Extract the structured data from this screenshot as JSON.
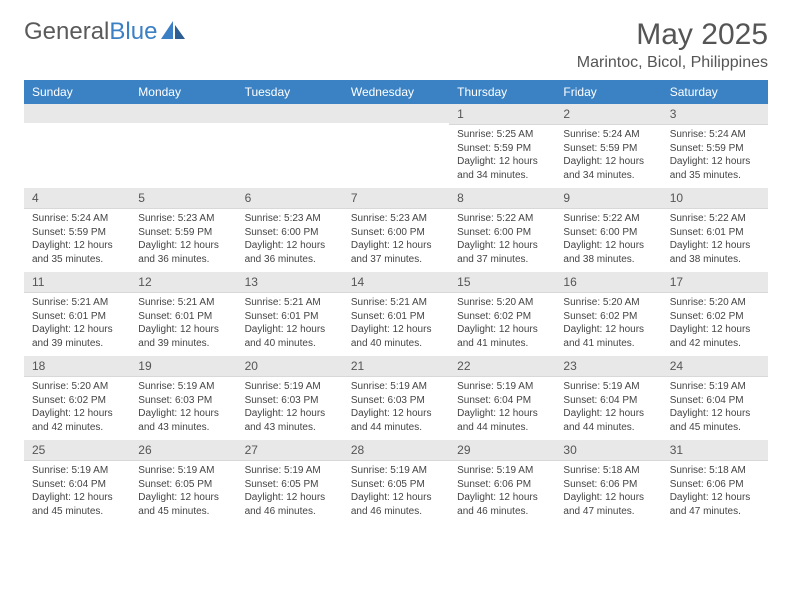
{
  "logo": {
    "text_gray": "General",
    "text_blue": "Blue"
  },
  "title": "May 2025",
  "location": "Marintoc, Bicol, Philippines",
  "day_names": [
    "Sunday",
    "Monday",
    "Tuesday",
    "Wednesday",
    "Thursday",
    "Friday",
    "Saturday"
  ],
  "colors": {
    "header_bg": "#3b82c4",
    "header_text": "#ffffff",
    "date_bg": "#e8e8e8",
    "text": "#444444",
    "logo_gray": "#5a5a5a",
    "logo_blue": "#3b7fc4"
  },
  "weeks": [
    [
      null,
      null,
      null,
      null,
      {
        "d": "1",
        "sr": "5:25 AM",
        "ss": "5:59 PM",
        "dl": "12 hours and 34 minutes."
      },
      {
        "d": "2",
        "sr": "5:24 AM",
        "ss": "5:59 PM",
        "dl": "12 hours and 34 minutes."
      },
      {
        "d": "3",
        "sr": "5:24 AM",
        "ss": "5:59 PM",
        "dl": "12 hours and 35 minutes."
      }
    ],
    [
      {
        "d": "4",
        "sr": "5:24 AM",
        "ss": "5:59 PM",
        "dl": "12 hours and 35 minutes."
      },
      {
        "d": "5",
        "sr": "5:23 AM",
        "ss": "5:59 PM",
        "dl": "12 hours and 36 minutes."
      },
      {
        "d": "6",
        "sr": "5:23 AM",
        "ss": "6:00 PM",
        "dl": "12 hours and 36 minutes."
      },
      {
        "d": "7",
        "sr": "5:23 AM",
        "ss": "6:00 PM",
        "dl": "12 hours and 37 minutes."
      },
      {
        "d": "8",
        "sr": "5:22 AM",
        "ss": "6:00 PM",
        "dl": "12 hours and 37 minutes."
      },
      {
        "d": "9",
        "sr": "5:22 AM",
        "ss": "6:00 PM",
        "dl": "12 hours and 38 minutes."
      },
      {
        "d": "10",
        "sr": "5:22 AM",
        "ss": "6:01 PM",
        "dl": "12 hours and 38 minutes."
      }
    ],
    [
      {
        "d": "11",
        "sr": "5:21 AM",
        "ss": "6:01 PM",
        "dl": "12 hours and 39 minutes."
      },
      {
        "d": "12",
        "sr": "5:21 AM",
        "ss": "6:01 PM",
        "dl": "12 hours and 39 minutes."
      },
      {
        "d": "13",
        "sr": "5:21 AM",
        "ss": "6:01 PM",
        "dl": "12 hours and 40 minutes."
      },
      {
        "d": "14",
        "sr": "5:21 AM",
        "ss": "6:01 PM",
        "dl": "12 hours and 40 minutes."
      },
      {
        "d": "15",
        "sr": "5:20 AM",
        "ss": "6:02 PM",
        "dl": "12 hours and 41 minutes."
      },
      {
        "d": "16",
        "sr": "5:20 AM",
        "ss": "6:02 PM",
        "dl": "12 hours and 41 minutes."
      },
      {
        "d": "17",
        "sr": "5:20 AM",
        "ss": "6:02 PM",
        "dl": "12 hours and 42 minutes."
      }
    ],
    [
      {
        "d": "18",
        "sr": "5:20 AM",
        "ss": "6:02 PM",
        "dl": "12 hours and 42 minutes."
      },
      {
        "d": "19",
        "sr": "5:19 AM",
        "ss": "6:03 PM",
        "dl": "12 hours and 43 minutes."
      },
      {
        "d": "20",
        "sr": "5:19 AM",
        "ss": "6:03 PM",
        "dl": "12 hours and 43 minutes."
      },
      {
        "d": "21",
        "sr": "5:19 AM",
        "ss": "6:03 PM",
        "dl": "12 hours and 44 minutes."
      },
      {
        "d": "22",
        "sr": "5:19 AM",
        "ss": "6:04 PM",
        "dl": "12 hours and 44 minutes."
      },
      {
        "d": "23",
        "sr": "5:19 AM",
        "ss": "6:04 PM",
        "dl": "12 hours and 44 minutes."
      },
      {
        "d": "24",
        "sr": "5:19 AM",
        "ss": "6:04 PM",
        "dl": "12 hours and 45 minutes."
      }
    ],
    [
      {
        "d": "25",
        "sr": "5:19 AM",
        "ss": "6:04 PM",
        "dl": "12 hours and 45 minutes."
      },
      {
        "d": "26",
        "sr": "5:19 AM",
        "ss": "6:05 PM",
        "dl": "12 hours and 45 minutes."
      },
      {
        "d": "27",
        "sr": "5:19 AM",
        "ss": "6:05 PM",
        "dl": "12 hours and 46 minutes."
      },
      {
        "d": "28",
        "sr": "5:19 AM",
        "ss": "6:05 PM",
        "dl": "12 hours and 46 minutes."
      },
      {
        "d": "29",
        "sr": "5:19 AM",
        "ss": "6:06 PM",
        "dl": "12 hours and 46 minutes."
      },
      {
        "d": "30",
        "sr": "5:18 AM",
        "ss": "6:06 PM",
        "dl": "12 hours and 47 minutes."
      },
      {
        "d": "31",
        "sr": "5:18 AM",
        "ss": "6:06 PM",
        "dl": "12 hours and 47 minutes."
      }
    ]
  ],
  "labels": {
    "sunrise": "Sunrise:",
    "sunset": "Sunset:",
    "daylight": "Daylight:"
  }
}
